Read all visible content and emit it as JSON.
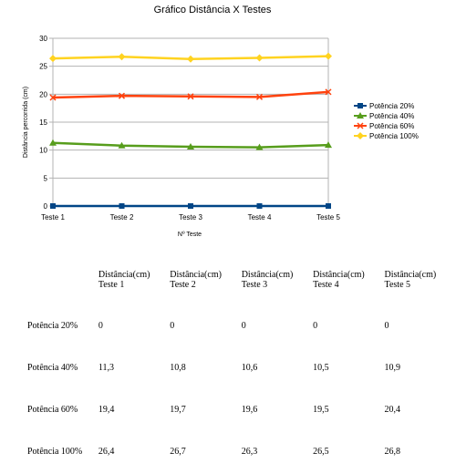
{
  "chart_data": {
    "type": "line",
    "title": "Gráfico Distância X Testes",
    "xlabel": "Nº Teste",
    "ylabel": "Distância percorrida (cm)",
    "categories": [
      "Teste 1",
      "Teste 2",
      "Teste 3",
      "Teste 4",
      "Teste 5"
    ],
    "ylim": [
      0,
      30
    ],
    "yticks": [
      0,
      5,
      10,
      15,
      20,
      25,
      30
    ],
    "grid": "horizontal",
    "legend_position": "right",
    "series": [
      {
        "name": "Potência 20%",
        "values": [
          0,
          0,
          0,
          0,
          0
        ],
        "color": "#004586",
        "marker": "square"
      },
      {
        "name": "Potência 40%",
        "values": [
          11.3,
          10.8,
          10.6,
          10.5,
          10.9
        ],
        "color": "#579d1c",
        "marker": "triangle"
      },
      {
        "name": "Potência 60%",
        "values": [
          19.4,
          19.7,
          19.6,
          19.5,
          20.4
        ],
        "color": "#ff420e",
        "marker": "cross"
      },
      {
        "name": "Potência 100%",
        "values": [
          26.4,
          26.7,
          26.3,
          26.5,
          26.8
        ],
        "color": "#ffd320",
        "marker": "diamond"
      }
    ]
  },
  "table": {
    "header": [
      {
        "line1": "Distância(cm)",
        "line2": "Teste 1"
      },
      {
        "line1": "Distância(cm)",
        "line2": "Teste 2"
      },
      {
        "line1": "Distância(cm)",
        "line2": "Teste 3"
      },
      {
        "line1": "Distância(cm)",
        "line2": "Teste 4"
      },
      {
        "line1": "Distância(cm)",
        "line2": "Teste 5"
      }
    ],
    "rows": [
      {
        "label": "Potência  20%",
        "cells": [
          "0",
          "0",
          "0",
          "0",
          "0"
        ]
      },
      {
        "label": "Potência  40%",
        "cells": [
          "11,3",
          "10,8",
          "10,6",
          "10,5",
          "10,9"
        ]
      },
      {
        "label": "Potência  60%",
        "cells": [
          "19,4",
          "19,7",
          "19,6",
          "19,5",
          "20,4"
        ]
      },
      {
        "label": "Potência  100%",
        "cells": [
          "26,4",
          "26,7",
          "26,3",
          "26,5",
          "26,8"
        ]
      }
    ]
  }
}
